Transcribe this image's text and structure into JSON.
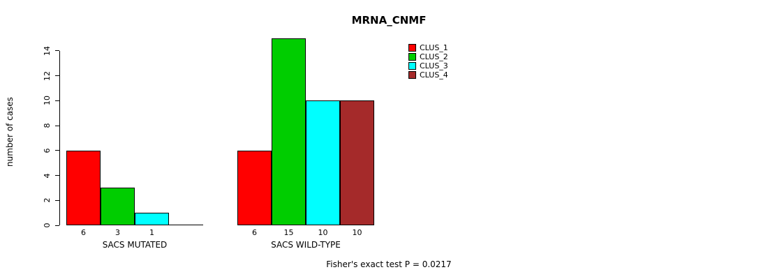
{
  "chart_data": {
    "type": "bar",
    "title": "MRNA_CNMF",
    "ylabel": "number of cases",
    "xlabel": "",
    "ylim": [
      0,
      15
    ],
    "yticks": [
      0,
      2,
      4,
      6,
      8,
      10,
      12,
      14
    ],
    "grid": false,
    "legend_position": "top-right",
    "legend": [
      {
        "label": "CLUS_1",
        "color": "#FF0000"
      },
      {
        "label": "CLUS_2",
        "color": "#00CD00"
      },
      {
        "label": "CLUS_3",
        "color": "#00FFFF"
      },
      {
        "label": "CLUS_4",
        "color": "#A52A2A"
      }
    ],
    "groups": [
      {
        "label": "SACS MUTATED",
        "bar_labels": [
          "6",
          "3",
          "1",
          ""
        ],
        "values": [
          6,
          3,
          1,
          0
        ]
      },
      {
        "label": "SACS WILD-TYPE",
        "bar_labels": [
          "6",
          "15",
          "10",
          "10"
        ],
        "values": [
          6,
          15,
          10,
          10
        ]
      }
    ],
    "annotation": "Fisher's exact test P = 0.0217"
  }
}
